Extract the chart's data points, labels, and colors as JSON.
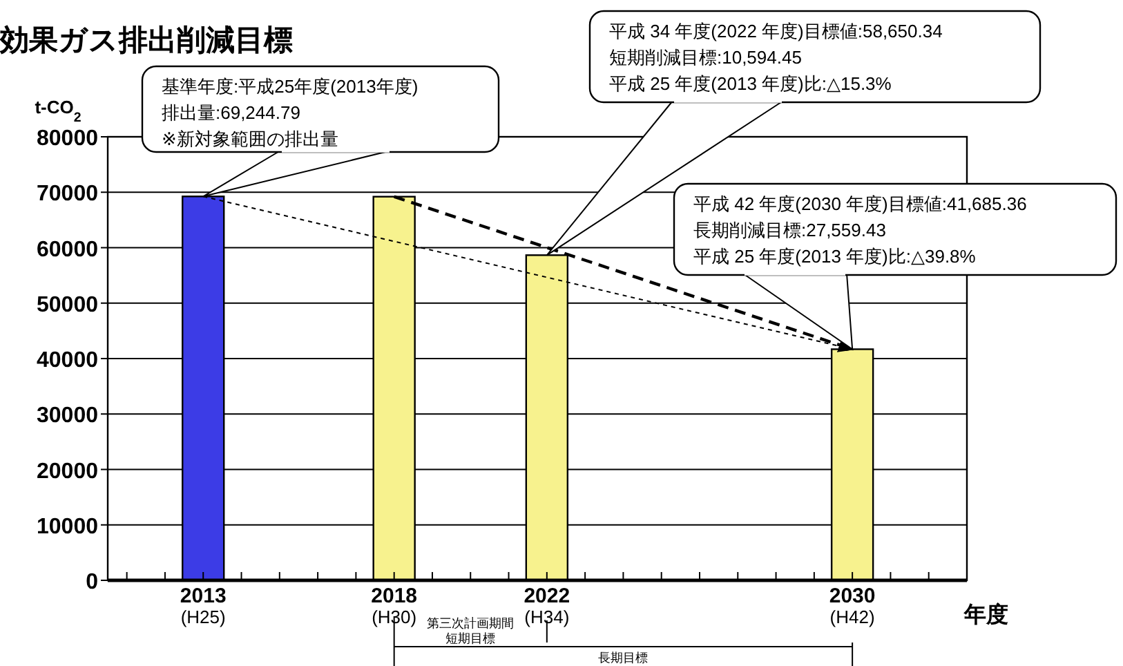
{
  "chart_data": {
    "type": "bar",
    "title": "効果ガス排出削減目標",
    "ylabel": "t-CO$_{2}$",
    "xlabel": "年度",
    "x": [
      2013,
      2018,
      2022,
      2030
    ],
    "values": [
      69244.79,
      69200,
      58650.34,
      41685.36
    ],
    "colors": [
      "#3c3ce6",
      "#f7f28e",
      "#f7f28e",
      "#f7f28e"
    ],
    "series": [
      {
        "type": "line",
        "x": [
          2013,
          2030
        ],
        "values": [
          69244.79,
          41685.36
        ],
        "color": "#000000",
        "line_style": "dotted"
      },
      {
        "type": "line",
        "x": [
          2018,
          2030
        ],
        "values": [
          69200,
          41685.36
        ],
        "color": "#000000",
        "line_style": "dashed"
      }
    ],
    "xlim": [
      2010.5,
      2033
    ],
    "xticks": [
      {
        "value": 2011,
        "label": null
      },
      {
        "value": 2012,
        "label": null
      },
      2013,
      {
        "value": 2014,
        "label": null
      },
      {
        "value": 2015,
        "label": null
      },
      {
        "value": 2016,
        "label": null
      },
      {
        "value": 2017,
        "label": null
      },
      2018,
      {
        "value": 2019,
        "label": null
      },
      {
        "value": 2020,
        "label": null
      },
      {
        "value": 2021,
        "label": null
      },
      2022,
      {
        "value": 2023,
        "label": null
      },
      {
        "value": 2024,
        "label": null
      },
      {
        "value": 2025,
        "label": null
      },
      {
        "value": 2026,
        "label": null
      },
      {
        "value": 2027,
        "label": null
      },
      {
        "value": 2028,
        "label": null
      },
      {
        "value": 2029,
        "label": null
      },
      2030,
      {
        "value": 2031,
        "label": null
      },
      {
        "value": 2032,
        "label": null
      }
    ],
    "ylim": [
      0,
      80000
    ],
    "yticks": [
      0,
      10000,
      20000,
      30000,
      40000,
      50000,
      60000,
      70000,
      80000
    ],
    "grid": "y",
    "annotations": [
      "基準年度:平成25年度(2013年度)\n排出量:69,244.79\n※新対象範囲の排出量",
      "平成 34 年度(2022 年度)目標値:58,650.34\n短期削減目標:10,594.45\n平成 25 年度(2013 年度)比:△15.3%",
      "平成 42 年度(2030 年度)目標値:41,685.36\n長期削減目標:27,559.43\n平成 25 年度(2013 年度)比:△39.8%",
      "第三次計画期間短期目標",
      "長期目標",
      "(H25)",
      "(H30)",
      "(H34)",
      "(H42)"
    ]
  }
}
